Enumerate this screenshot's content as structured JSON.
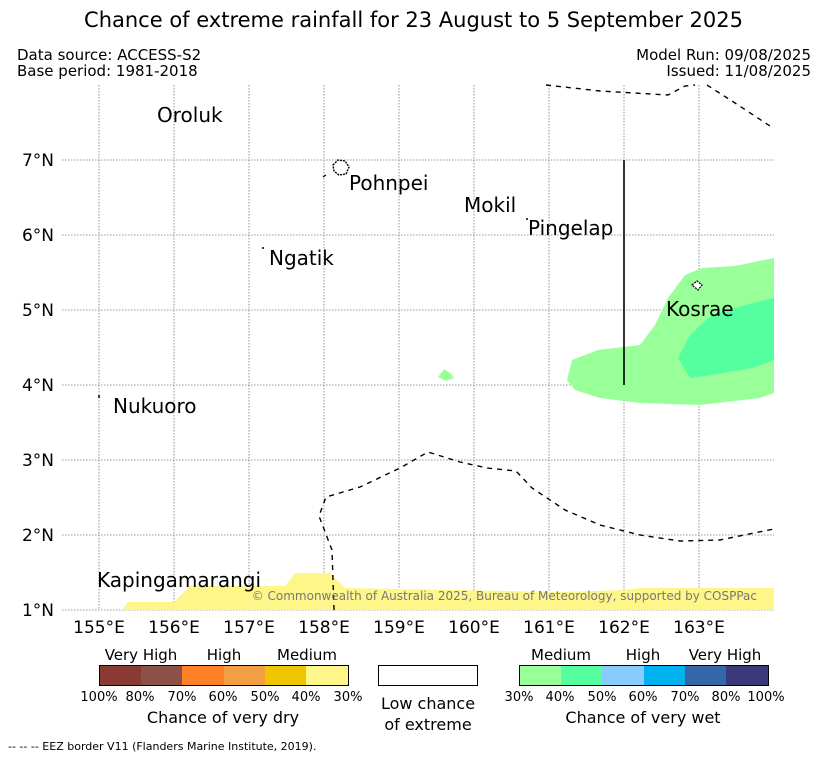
{
  "header": {
    "title": "Chance of extreme rainfall for 23 August to 5 September 2025",
    "data_source": "Data source: ACCESS-S2",
    "base_period": "Base period: 1981-2018",
    "model_run": "Model Run: 09/08/2025",
    "issued": "Issued: 11/08/2025"
  },
  "map": {
    "lon_ticks": [
      "155°E",
      "156°E",
      "157°E",
      "158°E",
      "159°E",
      "160°E",
      "161°E",
      "162°E",
      "163°E"
    ],
    "lat_ticks": [
      "1°N",
      "2°N",
      "3°N",
      "4°N",
      "5°N",
      "6°N",
      "7°N"
    ],
    "places": [
      {
        "name": "Oroluk",
        "lon": 155.8,
        "lat": 7.55
      },
      {
        "name": "Pohnpei",
        "lon": 158.3,
        "lat": 6.85
      },
      {
        "name": "Mokil",
        "lon": 159.8,
        "lat": 6.35
      },
      {
        "name": "Pingelap",
        "lon": 160.7,
        "lat": 6.1
      },
      {
        "name": "Ngatik",
        "lon": 157.25,
        "lat": 5.7
      },
      {
        "name": "Kosrae",
        "lon": 162.55,
        "lat": 5.0
      },
      {
        "name": "Nukuoro",
        "lon": 155.18,
        "lat": 3.7
      },
      {
        "name": "Kapingamarangi",
        "lon": 154.95,
        "lat": 1.3
      }
    ],
    "copyright": "© Commonwealth of Australia 2025, Bureau of Meteorology, supported by COSPPac",
    "colors": {
      "dry_medium": "#fff68a",
      "wet_medium": "#99ff99",
      "wet_medium_40": "#55ff9f"
    }
  },
  "legend": {
    "dry": {
      "title": "Chance of very dry",
      "groups": [
        "Very High",
        "High",
        "Medium"
      ],
      "ticks": [
        "100%",
        "80%",
        "70%",
        "60%",
        "50%",
        "40%",
        "30%"
      ],
      "colors": [
        "#8b3a33",
        "#8b5046",
        "#ff8127",
        "#f19e45",
        "#edc600",
        "#fff68a"
      ]
    },
    "low": {
      "line1": "Low chance",
      "line2": "of extreme"
    },
    "wet": {
      "title": "Chance of very wet",
      "groups": [
        "Medium",
        "High",
        "Very High"
      ],
      "ticks": [
        "30%",
        "40%",
        "50%",
        "60%",
        "70%",
        "80%",
        "100%"
      ],
      "colors": [
        "#99ff99",
        "#55ff9f",
        "#88ccff",
        "#00b2ef",
        "#3567a8",
        "#3a3a7a"
      ]
    }
  },
  "footer": "--  --  -- EEZ border V11 (Flanders Marine Institute, 2019)."
}
